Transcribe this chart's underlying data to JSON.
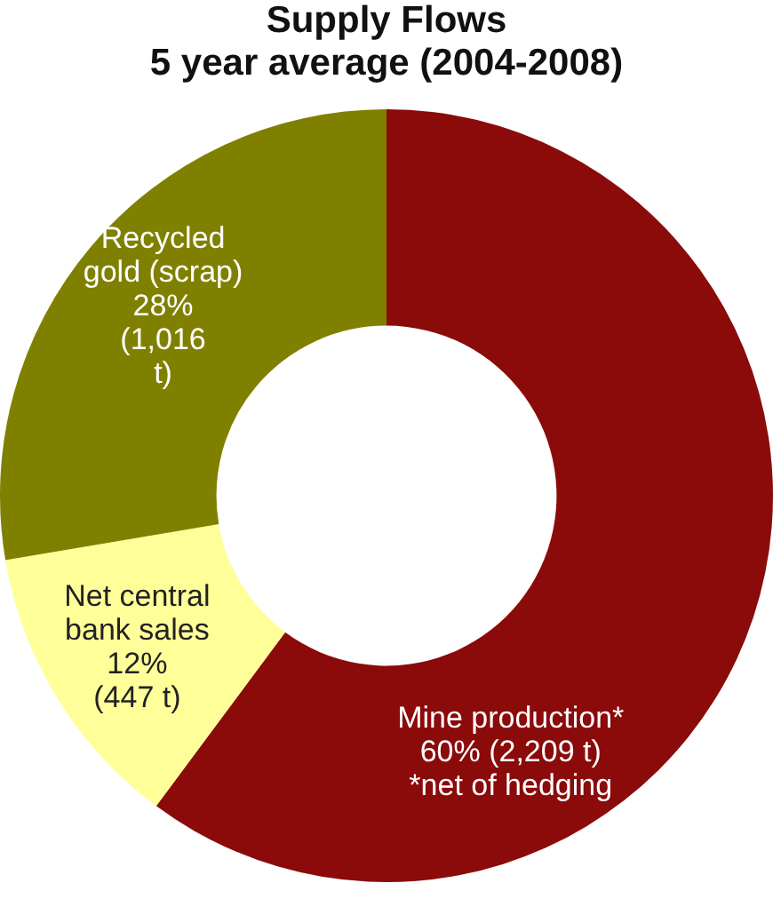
{
  "chart_data": {
    "type": "donut",
    "title": "Supply Flows",
    "subtitle": "5 year average (2004-2008)",
    "categories": [
      "Mine production*",
      "Net central bank sales",
      "Recycled gold (scrap)"
    ],
    "values": [
      2209,
      447,
      1016
    ],
    "colors": [
      "#8b0a0a",
      "#ffff99",
      "#808000"
    ],
    "value_labels": [
      "60% (2,209 t)",
      "12% (447 t)",
      "28% (1,016 t)"
    ],
    "annotations": [
      "*net of hedging"
    ],
    "legend": false
  }
}
